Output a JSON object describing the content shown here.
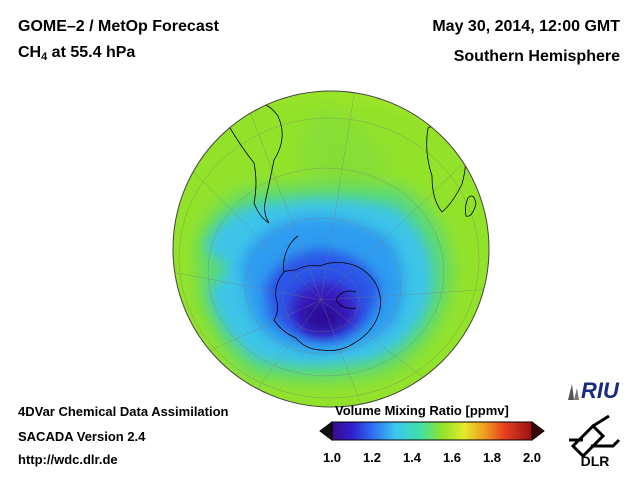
{
  "header": {
    "title": "GOME–2 / MetOp Forecast",
    "species": "CH",
    "species_sub": "4",
    "level": " at 55.4 hPa",
    "date": "May 30, 2014, 12:00 GMT",
    "hemisphere": "Southern Hemisphere"
  },
  "credits": {
    "line1": "4DVar Chemical Data Assimilation",
    "line2": "SACADA Version 2.4",
    "line3": "http://wdc.dlr.de"
  },
  "colorbar": {
    "title": "Volume Mixing Ratio [ppmv]",
    "ticks": [
      "1.0",
      "1.2",
      "1.4",
      "1.6",
      "1.8",
      "2.0"
    ],
    "min": 1.0,
    "max": 2.0
  },
  "logos": {
    "riu": "RIU",
    "dlr": "DLR"
  }
}
